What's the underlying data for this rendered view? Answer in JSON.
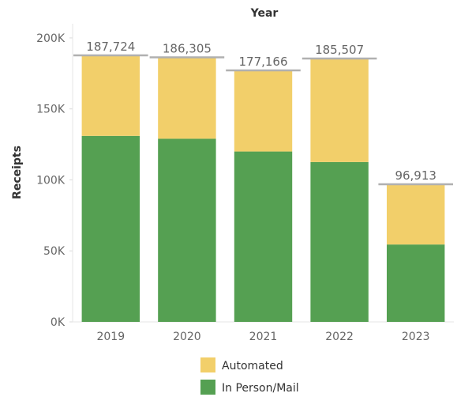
{
  "chart_data": {
    "type": "bar",
    "stacked": true,
    "column_header": "Year",
    "ylabel": "Receipts",
    "xlabel": "",
    "categories": [
      "2019",
      "2020",
      "2021",
      "2022",
      "2023"
    ],
    "series": [
      {
        "name": "In Person/Mail",
        "color": "#55a052",
        "values": [
          131000,
          129000,
          120000,
          112600,
          54500
        ]
      },
      {
        "name": "Automated",
        "color": "#f2cf6a",
        "values": [
          56724,
          57305,
          57166,
          72907,
          42413
        ]
      }
    ],
    "totals": [
      187724,
      186305,
      177166,
      185507,
      96913
    ],
    "total_labels": [
      "187,724",
      "186,305",
      "177,166",
      "185,507",
      "96,913"
    ],
    "total_marker_color": "#b0b0b0",
    "ylim": [
      0,
      210000
    ],
    "yticks": [
      0,
      50000,
      100000,
      150000,
      200000
    ],
    "ytick_labels": [
      "0K",
      "50K",
      "100K",
      "150K",
      "200K"
    ],
    "gridlines": false,
    "legend_position": "bottom",
    "legend": [
      {
        "name": "Automated",
        "color": "#f2cf6a"
      },
      {
        "name": "In Person/Mail",
        "color": "#55a052"
      }
    ]
  }
}
